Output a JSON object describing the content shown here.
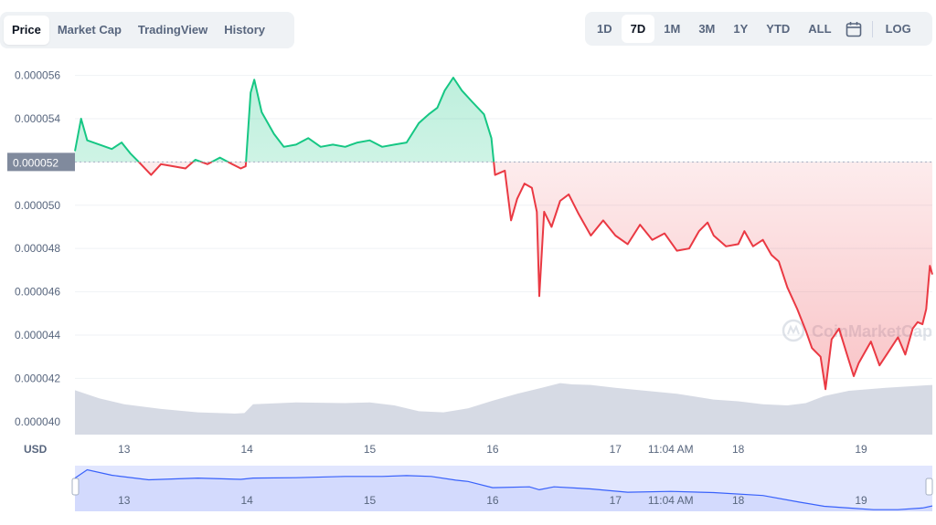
{
  "tabs": [
    {
      "label": "Price",
      "active": true
    },
    {
      "label": "Market Cap",
      "active": false
    },
    {
      "label": "TradingView",
      "active": false
    },
    {
      "label": "History",
      "active": false
    }
  ],
  "ranges": [
    {
      "label": "1D",
      "active": false
    },
    {
      "label": "7D",
      "active": true
    },
    {
      "label": "1M",
      "active": false
    },
    {
      "label": "3M",
      "active": false
    },
    {
      "label": "1Y",
      "active": false
    },
    {
      "label": "YTD",
      "active": false
    },
    {
      "label": "ALL",
      "active": false
    }
  ],
  "calendar_icon": "calendar-icon",
  "log_label": "LOG",
  "unit_label": "USD",
  "watermark": "CoinMarketCap",
  "colors": {
    "up": "#16c784",
    "down": "#ea3943",
    "volume": "#d1d6e1",
    "navigator_line": "#3861fb",
    "navigator_fill": "#e1e6fe"
  },
  "chart_data": {
    "type": "line",
    "y_ticks": [
      "0.000040",
      "0.000042",
      "0.000044",
      "0.000046",
      "0.000048",
      "0.000050",
      "0.000052",
      "0.000054",
      "0.000056"
    ],
    "ylim": [
      3.94e-05,
      5.67e-05
    ],
    "x_ticks": [
      "13",
      "14",
      "15",
      "16",
      "17",
      "11:04 AM",
      "18",
      "19"
    ],
    "x_tick_pos": [
      13,
      14,
      15,
      16,
      17,
      17.45,
      18,
      19
    ],
    "x_range": [
      12.6,
      19.58
    ],
    "baseline_label": "0.000052",
    "baseline_value": 5.2e-05,
    "price_points": [
      [
        12.6,
        5.25e-05
      ],
      [
        12.65,
        5.4e-05
      ],
      [
        12.7,
        5.3e-05
      ],
      [
        12.8,
        5.28e-05
      ],
      [
        12.9,
        5.26e-05
      ],
      [
        12.98,
        5.29e-05
      ],
      [
        13.05,
        5.24e-05
      ],
      [
        13.12,
        5.2e-05
      ],
      [
        13.22,
        5.14e-05
      ],
      [
        13.3,
        5.19e-05
      ],
      [
        13.4,
        5.18e-05
      ],
      [
        13.5,
        5.17e-05
      ],
      [
        13.58,
        5.21e-05
      ],
      [
        13.68,
        5.19e-05
      ],
      [
        13.78,
        5.22e-05
      ],
      [
        13.88,
        5.19e-05
      ],
      [
        13.95,
        5.17e-05
      ],
      [
        13.99,
        5.18e-05
      ],
      [
        14.03,
        5.52e-05
      ],
      [
        14.06,
        5.58e-05
      ],
      [
        14.12,
        5.43e-05
      ],
      [
        14.22,
        5.33e-05
      ],
      [
        14.3,
        5.27e-05
      ],
      [
        14.4,
        5.28e-05
      ],
      [
        14.5,
        5.31e-05
      ],
      [
        14.6,
        5.27e-05
      ],
      [
        14.7,
        5.28e-05
      ],
      [
        14.8,
        5.27e-05
      ],
      [
        14.9,
        5.29e-05
      ],
      [
        15.0,
        5.3e-05
      ],
      [
        15.1,
        5.27e-05
      ],
      [
        15.2,
        5.28e-05
      ],
      [
        15.3,
        5.29e-05
      ],
      [
        15.4,
        5.38e-05
      ],
      [
        15.48,
        5.42e-05
      ],
      [
        15.55,
        5.45e-05
      ],
      [
        15.61,
        5.53e-05
      ],
      [
        15.68,
        5.59e-05
      ],
      [
        15.75,
        5.53e-05
      ],
      [
        15.83,
        5.48e-05
      ],
      [
        15.93,
        5.42e-05
      ],
      [
        15.99,
        5.31e-05
      ],
      [
        16.02,
        5.14e-05
      ],
      [
        16.1,
        5.16e-05
      ],
      [
        16.15,
        4.93e-05
      ],
      [
        16.2,
        5.03e-05
      ],
      [
        16.26,
        5.1e-05
      ],
      [
        16.32,
        5.08e-05
      ],
      [
        16.36,
        4.97e-05
      ],
      [
        16.38,
        4.58e-05
      ],
      [
        16.42,
        4.97e-05
      ],
      [
        16.48,
        4.9e-05
      ],
      [
        16.55,
        5.02e-05
      ],
      [
        16.62,
        5.05e-05
      ],
      [
        16.7,
        4.96e-05
      ],
      [
        16.8,
        4.86e-05
      ],
      [
        16.9,
        4.93e-05
      ],
      [
        17.0,
        4.86e-05
      ],
      [
        17.1,
        4.82e-05
      ],
      [
        17.2,
        4.91e-05
      ],
      [
        17.3,
        4.84e-05
      ],
      [
        17.4,
        4.87e-05
      ],
      [
        17.5,
        4.79e-05
      ],
      [
        17.6,
        4.8e-05
      ],
      [
        17.68,
        4.88e-05
      ],
      [
        17.75,
        4.92e-05
      ],
      [
        17.8,
        4.86e-05
      ],
      [
        17.9,
        4.81e-05
      ],
      [
        18.0,
        4.82e-05
      ],
      [
        18.05,
        4.88e-05
      ],
      [
        18.12,
        4.81e-05
      ],
      [
        18.2,
        4.84e-05
      ],
      [
        18.27,
        4.77e-05
      ],
      [
        18.33,
        4.74e-05
      ],
      [
        18.4,
        4.62e-05
      ],
      [
        18.48,
        4.52e-05
      ],
      [
        18.55,
        4.42e-05
      ],
      [
        18.6,
        4.34e-05
      ],
      [
        18.67,
        4.3e-05
      ],
      [
        18.71,
        4.15e-05
      ],
      [
        18.76,
        4.38e-05
      ],
      [
        18.82,
        4.43e-05
      ],
      [
        18.88,
        4.32e-05
      ],
      [
        18.94,
        4.21e-05
      ],
      [
        18.98,
        4.27e-05
      ],
      [
        19.03,
        4.32e-05
      ],
      [
        19.08,
        4.37e-05
      ],
      [
        19.15,
        4.26e-05
      ],
      [
        19.22,
        4.32e-05
      ],
      [
        19.3,
        4.39e-05
      ],
      [
        19.36,
        4.31e-05
      ],
      [
        19.42,
        4.43e-05
      ],
      [
        19.46,
        4.46e-05
      ],
      [
        19.5,
        4.45e-05
      ],
      [
        19.53,
        4.52e-05
      ],
      [
        19.56,
        4.72e-05
      ],
      [
        19.58,
        4.68e-05
      ]
    ],
    "volume_relative": [
      [
        12.6,
        0.76
      ],
      [
        12.8,
        0.62
      ],
      [
        13.0,
        0.52
      ],
      [
        13.3,
        0.44
      ],
      [
        13.6,
        0.38
      ],
      [
        13.9,
        0.36
      ],
      [
        13.98,
        0.37
      ],
      [
        14.05,
        0.52
      ],
      [
        14.4,
        0.55
      ],
      [
        14.8,
        0.54
      ],
      [
        15.0,
        0.55
      ],
      [
        15.2,
        0.5
      ],
      [
        15.4,
        0.4
      ],
      [
        15.6,
        0.38
      ],
      [
        15.8,
        0.45
      ],
      [
        16.0,
        0.58
      ],
      [
        16.2,
        0.7
      ],
      [
        16.4,
        0.8
      ],
      [
        16.55,
        0.88
      ],
      [
        16.65,
        0.86
      ],
      [
        16.8,
        0.85
      ],
      [
        17.0,
        0.8
      ],
      [
        17.2,
        0.76
      ],
      [
        17.5,
        0.7
      ],
      [
        17.8,
        0.6
      ],
      [
        18.0,
        0.57
      ],
      [
        18.2,
        0.52
      ],
      [
        18.4,
        0.5
      ],
      [
        18.55,
        0.54
      ],
      [
        18.7,
        0.66
      ],
      [
        18.9,
        0.75
      ],
      [
        19.2,
        0.8
      ],
      [
        19.58,
        0.85
      ]
    ],
    "navigator_points": [
      [
        12.6,
        5.2e-05
      ],
      [
        12.7,
        5.4e-05
      ],
      [
        12.9,
        5.27e-05
      ],
      [
        13.2,
        5.16e-05
      ],
      [
        13.6,
        5.2e-05
      ],
      [
        13.95,
        5.17e-05
      ],
      [
        14.05,
        5.2e-05
      ],
      [
        14.4,
        5.21e-05
      ],
      [
        14.8,
        5.24e-05
      ],
      [
        15.1,
        5.24e-05
      ],
      [
        15.3,
        5.26e-05
      ],
      [
        15.5,
        5.24e-05
      ],
      [
        15.7,
        5.15e-05
      ],
      [
        15.8,
        5.12e-05
      ],
      [
        16.0,
        4.97e-05
      ],
      [
        16.3,
        4.99e-05
      ],
      [
        16.38,
        4.92e-05
      ],
      [
        16.5,
        4.99e-05
      ],
      [
        16.8,
        4.94e-05
      ],
      [
        17.1,
        4.86e-05
      ],
      [
        17.45,
        4.88e-05
      ],
      [
        17.8,
        4.85e-05
      ],
      [
        18.2,
        4.78e-05
      ],
      [
        18.5,
        4.62e-05
      ],
      [
        18.7,
        4.52e-05
      ],
      [
        18.9,
        4.48e-05
      ],
      [
        19.1,
        4.44e-05
      ],
      [
        19.3,
        4.44e-05
      ],
      [
        19.5,
        4.48e-05
      ],
      [
        19.58,
        4.53e-05
      ]
    ],
    "navigator_ylim": [
      4.4e-05,
      5.5e-05
    ]
  }
}
